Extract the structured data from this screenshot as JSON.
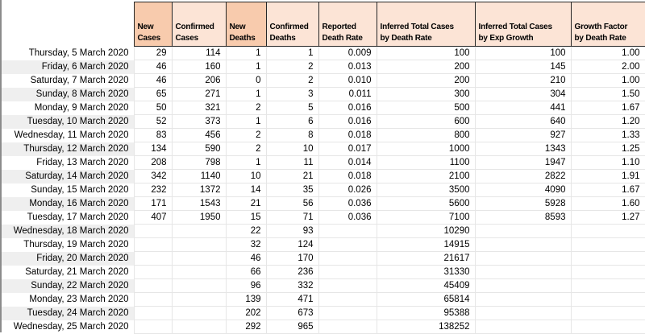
{
  "colors": {
    "header_dark": "#F8CBAD",
    "header_light": "#FCE4D6",
    "band": "#EFEFEF",
    "gridline": "#E6E6E6",
    "header_border": "#262626",
    "edge_line": "#8C8C8C"
  },
  "table": {
    "columns": [
      {
        "id": "date",
        "label": "",
        "fill": "none",
        "width": 164
      },
      {
        "id": "new-cases",
        "label": "New\nCases",
        "fill": "dark",
        "width": 47
      },
      {
        "id": "confirmed-cases",
        "label": "Confirmed\nCases",
        "fill": "light",
        "width": 67
      },
      {
        "id": "new-deaths",
        "label": "New\nDeaths",
        "fill": "dark",
        "width": 50
      },
      {
        "id": "confirmed-deaths",
        "label": "Confirmed\nDeaths",
        "fill": "light",
        "width": 65
      },
      {
        "id": "reported-death-rate",
        "label": "Reported\nDeath Rate",
        "fill": "light",
        "width": 72
      },
      {
        "id": "inferred-by-death-rate",
        "label": "Inferred Total Cases\nby Death Rate",
        "fill": "light",
        "width": 122
      },
      {
        "id": "inferred-by-exp-growth",
        "label": "Inferred Total Cases\nby Exp Growth",
        "fill": "light",
        "width": 119
      },
      {
        "id": "growth-factor",
        "label": "Growth Factor\nby Death Rate",
        "fill": "light",
        "width": 92
      }
    ],
    "rows": [
      [
        "Thursday, 5 March 2020",
        "29",
        "114",
        "1",
        "1",
        "0.009",
        "100",
        "100",
        "1.00"
      ],
      [
        "Friday, 6 March 2020",
        "46",
        "160",
        "1",
        "2",
        "0.013",
        "200",
        "145",
        "2.00"
      ],
      [
        "Saturday, 7 March 2020",
        "46",
        "206",
        "0",
        "2",
        "0.010",
        "200",
        "210",
        "1.00"
      ],
      [
        "Sunday, 8 March 2020",
        "65",
        "271",
        "1",
        "3",
        "0.011",
        "300",
        "304",
        "1.50"
      ],
      [
        "Monday, 9 March 2020",
        "50",
        "321",
        "2",
        "5",
        "0.016",
        "500",
        "441",
        "1.67"
      ],
      [
        "Tuesday, 10 March 2020",
        "52",
        "373",
        "1",
        "6",
        "0.016",
        "600",
        "640",
        "1.20"
      ],
      [
        "Wednesday, 11 March 2020",
        "83",
        "456",
        "2",
        "8",
        "0.018",
        "800",
        "927",
        "1.33"
      ],
      [
        "Thursday, 12 March 2020",
        "134",
        "590",
        "2",
        "10",
        "0.017",
        "1000",
        "1343",
        "1.25"
      ],
      [
        "Friday, 13 March 2020",
        "208",
        "798",
        "1",
        "11",
        "0.014",
        "1100",
        "1947",
        "1.10"
      ],
      [
        "Saturday, 14 March 2020",
        "342",
        "1140",
        "10",
        "21",
        "0.018",
        "2100",
        "2822",
        "1.91"
      ],
      [
        "Sunday, 15 March 2020",
        "232",
        "1372",
        "14",
        "35",
        "0.026",
        "3500",
        "4090",
        "1.67"
      ],
      [
        "Monday, 16 March 2020",
        "171",
        "1543",
        "21",
        "56",
        "0.036",
        "5600",
        "5928",
        "1.60"
      ],
      [
        "Tuesday, 17 March 2020",
        "407",
        "1950",
        "15",
        "71",
        "0.036",
        "7100",
        "8593",
        "1.27"
      ],
      [
        "Wednesday, 18 March 2020",
        "",
        "",
        "22",
        "93",
        "",
        "10290",
        "",
        ""
      ],
      [
        "Thursday, 19 March 2020",
        "",
        "",
        "32",
        "124",
        "",
        "14915",
        "",
        ""
      ],
      [
        "Friday, 20 March 2020",
        "",
        "",
        "46",
        "170",
        "",
        "21617",
        "",
        ""
      ],
      [
        "Saturday, 21 March 2020",
        "",
        "",
        "66",
        "236",
        "",
        "31330",
        "",
        ""
      ],
      [
        "Sunday, 22 March 2020",
        "",
        "",
        "96",
        "332",
        "",
        "45409",
        "",
        ""
      ],
      [
        "Monday, 23 March 2020",
        "",
        "",
        "139",
        "471",
        "",
        "65814",
        "",
        ""
      ],
      [
        "Tuesday, 24 March 2020",
        "",
        "",
        "202",
        "673",
        "",
        "95388",
        "",
        ""
      ],
      [
        "Wednesday, 25 March 2020",
        "",
        "",
        "292",
        "965",
        "",
        "138252",
        "",
        ""
      ]
    ]
  }
}
